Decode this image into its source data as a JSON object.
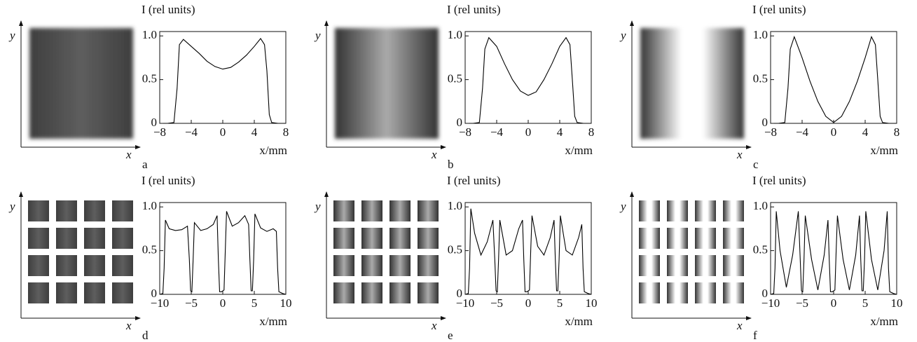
{
  "chart_data": [
    {
      "type": "line",
      "panel": "a",
      "ylabel": "I (rel units)",
      "xlabel": "x/mm",
      "image_xlabel": "x",
      "image_ylabel": "y",
      "color": "#000",
      "x": [
        -8,
        -7,
        -6.2,
        -5.8,
        -5.5,
        -5,
        -4,
        -3,
        -2,
        -1,
        0,
        1,
        2,
        3,
        4,
        4.8,
        5.3,
        5.6,
        5.9,
        6.2,
        7,
        8
      ],
      "values": [
        0,
        0,
        0.01,
        0.4,
        0.9,
        0.96,
        0.88,
        0.8,
        0.71,
        0.65,
        0.62,
        0.64,
        0.7,
        0.78,
        0.88,
        0.97,
        0.9,
        0.6,
        0.1,
        0.01,
        0,
        0
      ],
      "xlim": [
        -8,
        8
      ],
      "ylim": [
        0,
        1.05
      ],
      "xticks": [
        {
          "value": -8,
          "label": "−8"
        },
        {
          "value": -4,
          "label": "−4"
        },
        0,
        4,
        8
      ],
      "yticks": [
        0,
        0.5,
        {
          "value": 1,
          "label": "1.0"
        }
      ]
    },
    {
      "type": "line",
      "panel": "b",
      "ylabel": "I (rel units)",
      "xlabel": "x/mm",
      "image_xlabel": "x",
      "image_ylabel": "y",
      "color": "#000",
      "x": [
        -8,
        -7,
        -6.2,
        -5.8,
        -5.5,
        -5,
        -4,
        -3,
        -2,
        -1,
        0,
        1,
        2,
        3,
        4,
        4.8,
        5.3,
        5.6,
        5.9,
        6.2,
        7,
        8
      ],
      "values": [
        0,
        0,
        0.01,
        0.4,
        0.85,
        0.98,
        0.88,
        0.68,
        0.5,
        0.37,
        0.32,
        0.36,
        0.5,
        0.68,
        0.88,
        0.98,
        0.9,
        0.5,
        0.08,
        0.01,
        0,
        0
      ],
      "xlim": [
        -8,
        8
      ],
      "ylim": [
        0,
        1.05
      ],
      "xticks": [
        {
          "value": -8,
          "label": "−8"
        },
        {
          "value": -4,
          "label": "−4"
        },
        0,
        4,
        8
      ],
      "yticks": [
        0,
        0.5,
        {
          "value": 1,
          "label": "1.0"
        }
      ]
    },
    {
      "type": "line",
      "panel": "c",
      "ylabel": "I (rel units)",
      "xlabel": "x/mm",
      "image_xlabel": "x",
      "image_ylabel": "y",
      "color": "#000",
      "x": [
        -8,
        -7,
        -6.2,
        -5.8,
        -5.5,
        -5,
        -4,
        -3,
        -2,
        -1,
        0,
        1,
        2,
        3,
        4,
        4.8,
        5.3,
        5.6,
        5.9,
        6.2,
        7,
        8
      ],
      "values": [
        0,
        0,
        0.01,
        0.4,
        0.85,
        0.99,
        0.75,
        0.48,
        0.25,
        0.08,
        0.01,
        0.08,
        0.25,
        0.48,
        0.75,
        0.99,
        0.9,
        0.5,
        0.08,
        0.01,
        0,
        0
      ],
      "xlim": [
        -8,
        8
      ],
      "ylim": [
        0,
        1.05
      ],
      "xticks": [
        {
          "value": -8,
          "label": "−8"
        },
        {
          "value": -4,
          "label": "−4"
        },
        0,
        4,
        8
      ],
      "yticks": [
        0,
        0.5,
        {
          "value": 1,
          "label": "1.0"
        }
      ]
    },
    {
      "type": "line",
      "panel": "d",
      "ylabel": "I (rel units)",
      "xlabel": "x/mm",
      "image_xlabel": "x",
      "image_ylabel": "y",
      "color": "#000",
      "x": [
        -10,
        -9.5,
        -9.3,
        -9.1,
        -8.5,
        -7.5,
        -6.5,
        -5.6,
        -5.3,
        -5.1,
        -4.9,
        -4.7,
        -4.5,
        -3.5,
        -2.5,
        -1.5,
        -0.9,
        -0.7,
        -0.5,
        -0.2,
        0.2,
        0.4,
        0.6,
        1.5,
        2.5,
        3.5,
        4.1,
        4.3,
        4.5,
        4.7,
        4.9,
        5.1,
        6,
        7,
        8,
        8.5,
        8.7,
        8.9,
        9.5,
        10
      ],
      "values": [
        0,
        0.01,
        0.3,
        0.85,
        0.75,
        0.73,
        0.74,
        0.78,
        0.4,
        0.04,
        0.03,
        0.4,
        0.82,
        0.73,
        0.75,
        0.8,
        0.9,
        0.4,
        0.03,
        0.03,
        0.05,
        0.5,
        0.95,
        0.78,
        0.82,
        0.9,
        0.8,
        0.4,
        0.04,
        0.04,
        0.4,
        0.92,
        0.76,
        0.72,
        0.75,
        0.72,
        0.3,
        0.03,
        0.01,
        0
      ],
      "xlim": [
        -10,
        10
      ],
      "ylim": [
        0,
        1.05
      ],
      "xticks": [
        {
          "value": -10,
          "label": "−10"
        },
        {
          "value": -5,
          "label": "−5"
        },
        0,
        5,
        10
      ],
      "yticks": [
        0,
        0.5,
        {
          "value": 1,
          "label": "1.0"
        }
      ]
    },
    {
      "type": "line",
      "panel": "e",
      "ylabel": "I (rel units)",
      "xlabel": "x/mm",
      "image_xlabel": "x",
      "image_ylabel": "y",
      "color": "#000",
      "x": [
        -10,
        -9.5,
        -9.3,
        -9.1,
        -8.5,
        -7.5,
        -6.5,
        -5.6,
        -5.3,
        -5.1,
        -4.9,
        -4.7,
        -4.5,
        -3.5,
        -2.5,
        -1.5,
        -0.9,
        -0.7,
        -0.5,
        -0.2,
        0.2,
        0.4,
        0.6,
        1.5,
        2.5,
        3.5,
        4.1,
        4.3,
        4.5,
        4.7,
        4.9,
        5.1,
        6,
        7,
        8,
        8.5,
        8.7,
        8.9,
        9.5,
        10
      ],
      "values": [
        0,
        0.01,
        0.3,
        0.98,
        0.7,
        0.45,
        0.6,
        0.85,
        0.4,
        0.04,
        0.03,
        0.4,
        0.85,
        0.45,
        0.5,
        0.75,
        0.85,
        0.4,
        0.03,
        0.03,
        0.05,
        0.5,
        0.9,
        0.55,
        0.45,
        0.65,
        0.85,
        0.4,
        0.04,
        0.04,
        0.4,
        0.9,
        0.5,
        0.45,
        0.65,
        0.8,
        0.3,
        0.03,
        0.01,
        0
      ],
      "xlim": [
        -10,
        10
      ],
      "ylim": [
        0,
        1.05
      ],
      "xticks": [
        {
          "value": -10,
          "label": "−10"
        },
        {
          "value": -5,
          "label": "−5"
        },
        0,
        5,
        10
      ],
      "yticks": [
        0,
        0.5,
        {
          "value": 1,
          "label": "1.0"
        }
      ]
    },
    {
      "type": "line",
      "panel": "f",
      "ylabel": "I (rel units)",
      "xlabel": "x/mm",
      "image_xlabel": "x",
      "image_ylabel": "y",
      "color": "#000",
      "x": [
        -10,
        -9.5,
        -9.3,
        -9.1,
        -8.5,
        -7.5,
        -6.5,
        -5.6,
        -5.3,
        -5.1,
        -4.9,
        -4.7,
        -4.5,
        -3.5,
        -2.5,
        -1.5,
        -0.9,
        -0.7,
        -0.5,
        -0.2,
        0.2,
        0.4,
        0.6,
        1.5,
        2.5,
        3.5,
        4.1,
        4.3,
        4.5,
        4.7,
        4.9,
        5.1,
        6,
        7,
        8,
        8.5,
        8.7,
        8.9,
        9.5,
        10
      ],
      "values": [
        0,
        0.01,
        0.3,
        0.95,
        0.5,
        0.08,
        0.45,
        0.95,
        0.4,
        0.04,
        0.03,
        0.4,
        0.9,
        0.4,
        0.05,
        0.45,
        0.85,
        0.4,
        0.03,
        0.03,
        0.05,
        0.5,
        0.9,
        0.4,
        0.05,
        0.45,
        0.9,
        0.4,
        0.04,
        0.04,
        0.4,
        0.95,
        0.4,
        0.05,
        0.5,
        0.95,
        0.3,
        0.03,
        0.01,
        0
      ],
      "xlim": [
        -10,
        10
      ],
      "ylim": [
        0,
        1.05
      ],
      "xticks": [
        {
          "value": -10,
          "label": "−10"
        },
        {
          "value": -5,
          "label": "−5"
        },
        0,
        5,
        10
      ],
      "yticks": [
        0,
        0.5,
        {
          "value": 1,
          "label": "1.0"
        }
      ]
    }
  ]
}
